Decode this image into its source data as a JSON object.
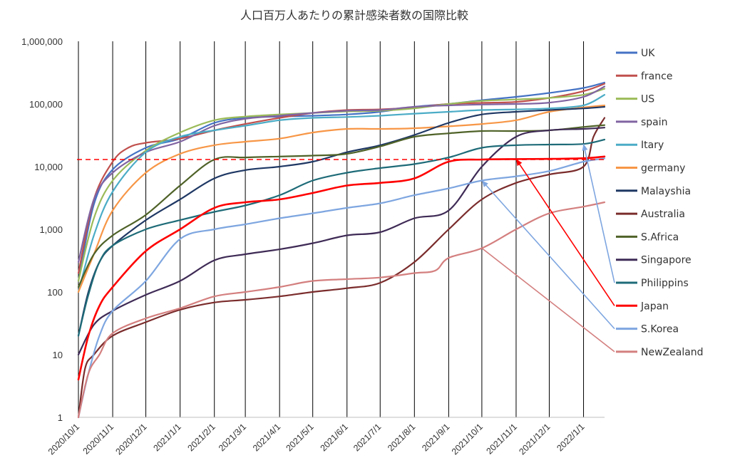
{
  "chart_data": {
    "type": "line",
    "title": "人口百万人あたりの累計感染者数の国際比較",
    "y_scale": "log",
    "ylim": [
      1,
      1000000
    ],
    "y_ticks": [
      1,
      10,
      100,
      1000,
      10000,
      100000,
      1000000
    ],
    "y_tick_labels": [
      "1",
      "10",
      "100",
      "1,000",
      "10,000",
      "100,000",
      "1,000,000"
    ],
    "x_tick_labels": [
      "2020/10/1",
      "2020/11/1",
      "2020/12/1",
      "2021/1/1",
      "2021/2/1",
      "2021/3/1",
      "2021/4/1",
      "2021/5/1",
      "2021/6/1",
      "2021/7/1",
      "2021/8/1",
      "2021/9/1",
      "2021/10/1",
      "2021/11/1",
      "2021/12/1",
      "2022/1/1"
    ],
    "xlim": [
      "2020/10/1",
      "2022/1/20"
    ],
    "grid": "vertical lines at each month",
    "legend_position": "right",
    "reference_line": {
      "value": 13000,
      "color": "#ff0000",
      "style": "dashed"
    },
    "series": [
      {
        "name": "UK",
        "color": "#4472c4",
        "points": [
          [
            "2020/10/1",
            150
          ],
          [
            "2020/10/15",
            2500
          ],
          [
            "2020/11/1",
            9000
          ],
          [
            "2020/12/1",
            20000
          ],
          [
            "2021/1/1",
            28000
          ],
          [
            "2021/2/1",
            50000
          ],
          [
            "2021/3/1",
            60000
          ],
          [
            "2021/4/1",
            63000
          ],
          [
            "2021/5/1",
            65000
          ],
          [
            "2021/6/1",
            68000
          ],
          [
            "2021/7/1",
            75000
          ],
          [
            "2021/8/1",
            90000
          ],
          [
            "2021/9/1",
            100000
          ],
          [
            "2021/10/1",
            115000
          ],
          [
            "2021/11/1",
            130000
          ],
          [
            "2021/12/1",
            150000
          ],
          [
            "2022/1/1",
            180000
          ],
          [
            "2022/1/20",
            220000
          ]
        ]
      },
      {
        "name": "france",
        "color": "#c0504d",
        "points": [
          [
            "2020/10/1",
            200
          ],
          [
            "2020/10/15",
            3000
          ],
          [
            "2020/11/1",
            12000
          ],
          [
            "2020/11/15",
            20000
          ],
          [
            "2020/12/1",
            24000
          ],
          [
            "2021/1/1",
            28000
          ],
          [
            "2021/2/1",
            38000
          ],
          [
            "2021/3/1",
            48000
          ],
          [
            "2021/4/1",
            60000
          ],
          [
            "2021/5/1",
            72000
          ],
          [
            "2021/6/1",
            80000
          ],
          [
            "2021/7/1",
            82000
          ],
          [
            "2021/8/1",
            88000
          ],
          [
            "2021/9/1",
            100000
          ],
          [
            "2021/10/1",
            104000
          ],
          [
            "2021/11/1",
            108000
          ],
          [
            "2021/12/1",
            125000
          ],
          [
            "2022/1/1",
            160000
          ],
          [
            "2022/1/20",
            210000
          ]
        ]
      },
      {
        "name": "US",
        "color": "#9bbb59",
        "points": [
          [
            "2020/10/1",
            150
          ],
          [
            "2020/10/15",
            1500
          ],
          [
            "2020/11/1",
            6000
          ],
          [
            "2020/12/1",
            18000
          ],
          [
            "2021/1/1",
            35000
          ],
          [
            "2021/2/1",
            55000
          ],
          [
            "2021/3/1",
            63000
          ],
          [
            "2021/4/1",
            68000
          ],
          [
            "2021/5/1",
            72000
          ],
          [
            "2021/6/1",
            76000
          ],
          [
            "2021/7/1",
            78000
          ],
          [
            "2021/8/1",
            85000
          ],
          [
            "2021/9/1",
            100000
          ],
          [
            "2021/10/1",
            112000
          ],
          [
            "2021/11/1",
            118000
          ],
          [
            "2021/12/1",
            125000
          ],
          [
            "2022/1/1",
            140000
          ],
          [
            "2022/1/20",
            175000
          ]
        ]
      },
      {
        "name": "spain",
        "color": "#8064a2",
        "points": [
          [
            "2020/10/1",
            300
          ],
          [
            "2020/10/15",
            3000
          ],
          [
            "2020/11/1",
            8000
          ],
          [
            "2020/12/1",
            17000
          ],
          [
            "2021/1/1",
            25000
          ],
          [
            "2021/2/1",
            45000
          ],
          [
            "2021/3/1",
            58000
          ],
          [
            "2021/4/1",
            65000
          ],
          [
            "2021/5/1",
            72000
          ],
          [
            "2021/6/1",
            78000
          ],
          [
            "2021/7/1",
            80000
          ],
          [
            "2021/8/1",
            90000
          ],
          [
            "2021/9/1",
            95000
          ],
          [
            "2021/10/1",
            98000
          ],
          [
            "2021/11/1",
            100000
          ],
          [
            "2021/12/1",
            105000
          ],
          [
            "2022/1/1",
            130000
          ],
          [
            "2022/1/20",
            190000
          ]
        ]
      },
      {
        "name": "Itary",
        "color": "#4bacc6",
        "points": [
          [
            "2020/10/1",
            100
          ],
          [
            "2020/10/15",
            800
          ],
          [
            "2020/11/1",
            4000
          ],
          [
            "2020/12/1",
            17000
          ],
          [
            "2021/1/1",
            30000
          ],
          [
            "2021/2/1",
            38000
          ],
          [
            "2021/3/1",
            45000
          ],
          [
            "2021/4/1",
            55000
          ],
          [
            "2021/5/1",
            60000
          ],
          [
            "2021/6/1",
            62000
          ],
          [
            "2021/7/1",
            65000
          ],
          [
            "2021/8/1",
            70000
          ],
          [
            "2021/9/1",
            75000
          ],
          [
            "2021/10/1",
            80000
          ],
          [
            "2021/11/1",
            82000
          ],
          [
            "2021/12/1",
            85000
          ],
          [
            "2022/1/1",
            95000
          ],
          [
            "2022/1/20",
            140000
          ]
        ]
      },
      {
        "name": "germany",
        "color": "#f79646",
        "points": [
          [
            "2020/10/1",
            100
          ],
          [
            "2020/10/15",
            400
          ],
          [
            "2020/11/1",
            2000
          ],
          [
            "2020/12/1",
            8000
          ],
          [
            "2021/1/1",
            16000
          ],
          [
            "2021/2/1",
            22000
          ],
          [
            "2021/3/1",
            25000
          ],
          [
            "2021/4/1",
            28000
          ],
          [
            "2021/5/1",
            35000
          ],
          [
            "2021/6/1",
            40000
          ],
          [
            "2021/7/1",
            40000
          ],
          [
            "2021/8/1",
            41000
          ],
          [
            "2021/9/1",
            44000
          ],
          [
            "2021/10/1",
            48000
          ],
          [
            "2021/11/1",
            55000
          ],
          [
            "2021/12/1",
            75000
          ],
          [
            "2022/1/1",
            88000
          ],
          [
            "2022/1/20",
            95000
          ]
        ]
      },
      {
        "name": "Malayshia",
        "color": "#1f3864",
        "points": [
          [
            "2020/10/1",
            20
          ],
          [
            "2020/10/10",
            100
          ],
          [
            "2020/10/20",
            300
          ],
          [
            "2020/11/1",
            550
          ],
          [
            "2020/12/1",
            1400
          ],
          [
            "2021/1/1",
            3000
          ],
          [
            "2021/2/1",
            6500
          ],
          [
            "2021/3/1",
            8800
          ],
          [
            "2021/4/1",
            10000
          ],
          [
            "2021/5/1",
            12000
          ],
          [
            "2021/6/1",
            17000
          ],
          [
            "2021/7/1",
            22000
          ],
          [
            "2021/8/1",
            32000
          ],
          [
            "2021/9/1",
            50000
          ],
          [
            "2021/10/1",
            68000
          ],
          [
            "2021/11/1",
            75000
          ],
          [
            "2021/12/1",
            80000
          ],
          [
            "2022/1/1",
            85000
          ],
          [
            "2022/1/20",
            90000
          ]
        ]
      },
      {
        "name": "Australia",
        "color": "#7b2c2c",
        "points": [
          [
            "2020/10/1",
            1
          ],
          [
            "2020/10/7",
            6
          ],
          [
            "2020/10/15",
            10
          ],
          [
            "2020/11/1",
            20
          ],
          [
            "2020/12/1",
            33
          ],
          [
            "2021/1/1",
            52
          ],
          [
            "2021/2/1",
            68
          ],
          [
            "2021/3/1",
            75
          ],
          [
            "2021/4/1",
            85
          ],
          [
            "2021/5/1",
            100
          ],
          [
            "2021/6/1",
            115
          ],
          [
            "2021/7/1",
            140
          ],
          [
            "2021/8/1",
            300
          ],
          [
            "2021/9/1",
            1000
          ],
          [
            "2021/10/1",
            3000
          ],
          [
            "2021/11/1",
            5500
          ],
          [
            "2021/12/1",
            7500
          ],
          [
            "2022/1/1",
            10000
          ],
          [
            "2022/1/10",
            30000
          ],
          [
            "2022/1/20",
            60000
          ]
        ]
      },
      {
        "name": "S.Africa",
        "color": "#4f6228",
        "points": [
          [
            "2020/10/1",
            120
          ],
          [
            "2020/10/15",
            400
          ],
          [
            "2020/11/1",
            800
          ],
          [
            "2020/12/1",
            1700
          ],
          [
            "2021/1/1",
            5000
          ],
          [
            "2021/2/1",
            13000
          ],
          [
            "2021/3/1",
            14000
          ],
          [
            "2021/4/1",
            14500
          ],
          [
            "2021/5/1",
            15000
          ],
          [
            "2021/6/1",
            16000
          ],
          [
            "2021/7/1",
            21000
          ],
          [
            "2021/8/1",
            30000
          ],
          [
            "2021/9/1",
            34000
          ],
          [
            "2021/10/1",
            37000
          ],
          [
            "2021/11/1",
            37000
          ],
          [
            "2021/12/1",
            38000
          ],
          [
            "2022/1/1",
            43000
          ],
          [
            "2022/1/20",
            46000
          ]
        ]
      },
      {
        "name": "Singapore",
        "color": "#3f2b56",
        "points": [
          [
            "2020/10/1",
            10
          ],
          [
            "2020/10/15",
            30
          ],
          [
            "2020/11/1",
            50
          ],
          [
            "2020/12/1",
            90
          ],
          [
            "2021/1/1",
            150
          ],
          [
            "2021/2/1",
            320
          ],
          [
            "2021/3/1",
            400
          ],
          [
            "2021/4/1",
            480
          ],
          [
            "2021/5/1",
            600
          ],
          [
            "2021/6/1",
            800
          ],
          [
            "2021/7/1",
            900
          ],
          [
            "2021/8/1",
            1500
          ],
          [
            "2021/9/1",
            2000
          ],
          [
            "2021/10/1",
            10000
          ],
          [
            "2021/11/1",
            30000
          ],
          [
            "2021/12/1",
            38000
          ],
          [
            "2022/1/1",
            40000
          ],
          [
            "2022/1/20",
            42000
          ]
        ]
      },
      {
        "name": "Philippins",
        "color": "#1e6b78",
        "points": [
          [
            "2020/10/1",
            20
          ],
          [
            "2020/10/10",
            90
          ],
          [
            "2020/10/20",
            300
          ],
          [
            "2020/11/1",
            550
          ],
          [
            "2020/12/1",
            1000
          ],
          [
            "2021/1/1",
            1400
          ],
          [
            "2021/2/1",
            1900
          ],
          [
            "2021/3/1",
            2400
          ],
          [
            "2021/4/1",
            3500
          ],
          [
            "2021/5/1",
            6000
          ],
          [
            "2021/6/1",
            8000
          ],
          [
            "2021/7/1",
            9500
          ],
          [
            "2021/8/1",
            11000
          ],
          [
            "2021/9/1",
            14000
          ],
          [
            "2021/10/1",
            20000
          ],
          [
            "2021/11/1",
            22000
          ],
          [
            "2021/12/1",
            22500
          ],
          [
            "2022/1/1",
            23000
          ],
          [
            "2022/1/20",
            27000
          ]
        ]
      },
      {
        "name": "Japan",
        "color": "#ff0000",
        "points": [
          [
            "2020/10/1",
            4
          ],
          [
            "2020/10/10",
            20
          ],
          [
            "2020/10/20",
            60
          ],
          [
            "2020/11/1",
            120
          ],
          [
            "2020/12/1",
            450
          ],
          [
            "2021/1/1",
            1000
          ],
          [
            "2021/2/1",
            2200
          ],
          [
            "2021/3/1",
            2700
          ],
          [
            "2021/4/1",
            3000
          ],
          [
            "2021/5/1",
            3800
          ],
          [
            "2021/6/1",
            5000
          ],
          [
            "2021/7/1",
            5500
          ],
          [
            "2021/8/1",
            6500
          ],
          [
            "2021/9/1",
            12000
          ],
          [
            "2021/10/1",
            13000
          ],
          [
            "2021/11/1",
            13200
          ],
          [
            "2021/12/1",
            13300
          ],
          [
            "2022/1/1",
            13600
          ],
          [
            "2022/1/20",
            14500
          ]
        ]
      },
      {
        "name": "S.Korea",
        "color": "#7ea6e0",
        "points": [
          [
            "2020/10/1",
            1
          ],
          [
            "2020/10/10",
            5
          ],
          [
            "2020/10/20",
            20
          ],
          [
            "2020/11/1",
            50
          ],
          [
            "2020/12/1",
            150
          ],
          [
            "2021/1/1",
            700
          ],
          [
            "2021/2/1",
            1000
          ],
          [
            "2021/3/1",
            1200
          ],
          [
            "2021/4/1",
            1500
          ],
          [
            "2021/5/1",
            1800
          ],
          [
            "2021/6/1",
            2200
          ],
          [
            "2021/7/1",
            2600
          ],
          [
            "2021/8/1",
            3500
          ],
          [
            "2021/9/1",
            4500
          ],
          [
            "2021/10/1",
            6000
          ],
          [
            "2021/11/1",
            7000
          ],
          [
            "2021/12/1",
            8500
          ],
          [
            "2022/1/1",
            12000
          ],
          [
            "2022/1/20",
            13500
          ]
        ]
      },
      {
        "name": "NewZealand",
        "color": "#d47f7f",
        "points": [
          [
            "2020/10/1",
            1
          ],
          [
            "2020/10/10",
            5
          ],
          [
            "2020/10/20",
            10
          ],
          [
            "2020/11/1",
            22
          ],
          [
            "2020/12/1",
            38
          ],
          [
            "2021/1/1",
            55
          ],
          [
            "2021/2/1",
            85
          ],
          [
            "2021/3/1",
            100
          ],
          [
            "2021/4/1",
            120
          ],
          [
            "2021/5/1",
            150
          ],
          [
            "2021/6/1",
            160
          ],
          [
            "2021/7/1",
            170
          ],
          [
            "2021/8/1",
            200
          ],
          [
            "2021/8/20",
            220
          ],
          [
            "2021/9/1",
            350
          ],
          [
            "2021/10/1",
            500
          ],
          [
            "2021/11/1",
            1000
          ],
          [
            "2021/12/1",
            1800
          ],
          [
            "2022/1/1",
            2300
          ],
          [
            "2022/1/20",
            2700
          ]
        ]
      }
    ]
  }
}
